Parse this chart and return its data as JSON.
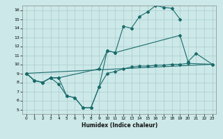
{
  "title": "",
  "xlabel": "Humidex (Indice chaleur)",
  "bg_color": "#cce8e8",
  "grid_color": "#aacccc",
  "line_color": "#1a6b6b",
  "xlim": [
    -0.5,
    23.5
  ],
  "ylim": [
    4.5,
    16.5
  ],
  "yticks": [
    5,
    6,
    7,
    8,
    9,
    10,
    11,
    12,
    13,
    14,
    15,
    16
  ],
  "xticks": [
    0,
    1,
    2,
    3,
    4,
    5,
    6,
    7,
    8,
    9,
    10,
    11,
    12,
    13,
    14,
    15,
    16,
    17,
    18,
    19,
    20,
    21,
    22,
    23
  ],
  "s1_x": [
    0,
    1,
    2,
    3,
    4,
    5,
    6,
    7,
    8,
    9,
    10,
    11,
    12,
    13,
    14,
    15,
    16,
    17,
    18,
    19
  ],
  "s1_y": [
    9.0,
    8.2,
    8.0,
    8.5,
    8.5,
    6.5,
    6.3,
    5.2,
    5.2,
    7.5,
    11.5,
    11.3,
    14.2,
    14.0,
    15.3,
    15.8,
    16.5,
    16.3,
    16.2,
    15.0
  ],
  "s2_x": [
    0,
    1,
    2,
    3,
    4,
    9,
    10,
    11,
    19,
    20,
    21,
    23
  ],
  "s2_y": [
    9.0,
    8.2,
    8.0,
    8.5,
    8.5,
    9.5,
    11.5,
    11.3,
    13.2,
    10.3,
    11.2,
    10.0
  ],
  "s3_x": [
    0,
    1,
    2,
    3,
    4,
    5,
    6,
    7,
    8,
    9,
    10,
    11,
    12,
    13,
    14,
    15,
    16,
    17,
    18,
    19,
    20,
    23
  ],
  "s3_y": [
    9.0,
    8.2,
    8.0,
    8.5,
    7.8,
    6.5,
    6.3,
    5.2,
    5.2,
    7.5,
    9.0,
    9.2,
    9.5,
    9.7,
    9.8,
    9.8,
    9.9,
    9.9,
    10.0,
    10.0,
    10.1,
    10.0
  ]
}
